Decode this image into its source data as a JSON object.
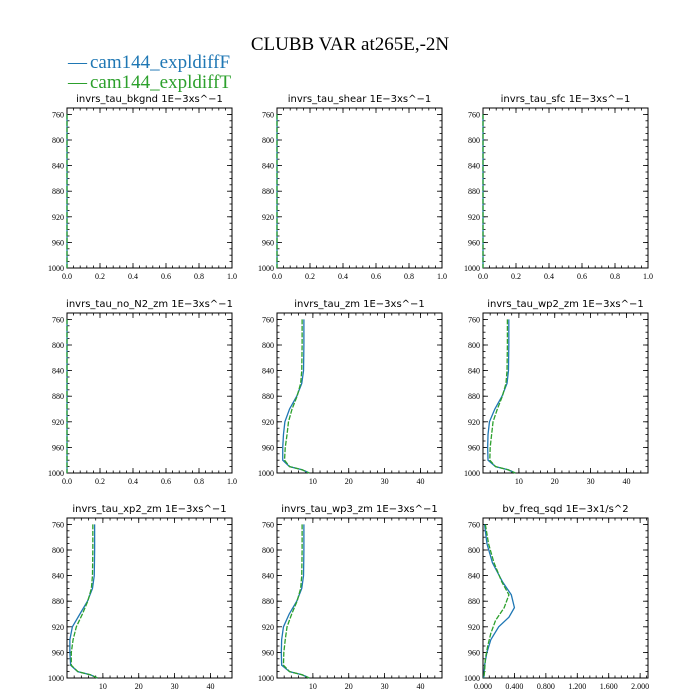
{
  "figure": {
    "title": "CLUBB VAR at265E,-2N",
    "legend": [
      {
        "name": "cam144_expldiffF",
        "color": "#1f77b4"
      },
      {
        "name": "cam144_expldiffT",
        "color": "#2ca02c"
      }
    ],
    "legend_marker": "—"
  },
  "chart_data": [
    {
      "type": "line",
      "title": "invrs_tau_bkgnd   1E−3xs^−1",
      "xlim": [
        0,
        1
      ],
      "ylim": [
        1000,
        750
      ],
      "yreverse": true,
      "xticks": [
        0.0,
        0.2,
        0.4,
        0.6,
        0.8,
        1.0
      ],
      "xtick_labels": [
        "0.0",
        "0.2",
        "0.4",
        "0.6",
        "0.8",
        "1.0"
      ],
      "yticks": [
        760,
        800,
        840,
        880,
        920,
        960,
        1000
      ],
      "series": [
        {
          "name": "cam144_expldiffF",
          "color": "#1f77b4",
          "points": [
            [
              0,
              760
            ],
            [
              0,
              1000
            ]
          ]
        },
        {
          "name": "cam144_expldiffT",
          "color": "#2ca02c",
          "points": [
            [
              0,
              760
            ],
            [
              0,
              1000
            ]
          ]
        }
      ]
    },
    {
      "type": "line",
      "title": "invrs_tau_shear   1E−3xs^−1",
      "xlim": [
        0,
        1
      ],
      "ylim": [
        1000,
        750
      ],
      "yreverse": true,
      "xticks": [
        0.0,
        0.2,
        0.4,
        0.6,
        0.8,
        1.0
      ],
      "xtick_labels": [
        "0.0",
        "0.2",
        "0.4",
        "0.6",
        "0.8",
        "1.0"
      ],
      "yticks": [
        760,
        800,
        840,
        880,
        920,
        960,
        1000
      ],
      "series": [
        {
          "name": "cam144_expldiffF",
          "color": "#1f77b4",
          "points": [
            [
              0,
              760
            ],
            [
              0,
              1000
            ]
          ]
        },
        {
          "name": "cam144_expldiffT",
          "color": "#2ca02c",
          "points": [
            [
              0,
              760
            ],
            [
              0,
              1000
            ]
          ]
        }
      ]
    },
    {
      "type": "line",
      "title": "invrs_tau_sfc   1E−3xs^−1",
      "xlim": [
        0,
        1
      ],
      "ylim": [
        1000,
        750
      ],
      "yreverse": true,
      "xticks": [
        0.0,
        0.2,
        0.4,
        0.6,
        0.8,
        1.0
      ],
      "xtick_labels": [
        "0.0",
        "0.2",
        "0.4",
        "0.6",
        "0.8",
        "1.0"
      ],
      "yticks": [
        760,
        800,
        840,
        880,
        920,
        960,
        1000
      ],
      "series": [
        {
          "name": "cam144_expldiffF",
          "color": "#1f77b4",
          "points": [
            [
              0,
              760
            ],
            [
              0,
              1000
            ]
          ]
        },
        {
          "name": "cam144_expldiffT",
          "color": "#2ca02c",
          "points": [
            [
              0,
              760
            ],
            [
              0,
              1000
            ]
          ]
        }
      ]
    },
    {
      "type": "line",
      "title": "invrs_tau_no_N2_zm   1E−3xs^−1",
      "xlim": [
        0,
        1
      ],
      "ylim": [
        1000,
        750
      ],
      "yreverse": true,
      "xticks": [
        0.0,
        0.2,
        0.4,
        0.6,
        0.8,
        1.0
      ],
      "xtick_labels": [
        "0.0",
        "0.2",
        "0.4",
        "0.6",
        "0.8",
        "1.0"
      ],
      "yticks": [
        760,
        800,
        840,
        880,
        920,
        960,
        1000
      ],
      "series": [
        {
          "name": "cam144_expldiffF",
          "color": "#1f77b4",
          "points": [
            [
              0,
              760
            ],
            [
              0,
              1000
            ]
          ]
        },
        {
          "name": "cam144_expldiffT",
          "color": "#2ca02c",
          "points": [
            [
              0,
              760
            ],
            [
              0,
              1000
            ]
          ]
        }
      ]
    },
    {
      "type": "line",
      "title": "invrs_tau_zm   1E−3xs^−1",
      "xlim": [
        0,
        46
      ],
      "ylim": [
        1000,
        750
      ],
      "yreverse": true,
      "xticks": [
        10,
        20,
        30,
        40
      ],
      "xtick_labels": [
        "10",
        "20",
        "30",
        "40"
      ],
      "yticks": [
        760,
        800,
        840,
        880,
        920,
        960,
        1000
      ],
      "series": [
        {
          "name": "cam144_expldiffF",
          "color": "#1f77b4",
          "points": [
            [
              7.5,
              760
            ],
            [
              7.5,
              800
            ],
            [
              7.4,
              840
            ],
            [
              6.9,
              860
            ],
            [
              5.5,
              880
            ],
            [
              3.5,
              900
            ],
            [
              2.2,
              920
            ],
            [
              1.8,
              940
            ],
            [
              1.6,
              960
            ],
            [
              1.6,
              980
            ],
            [
              3.5,
              990
            ],
            [
              7,
              995
            ],
            [
              9,
              1000
            ]
          ]
        },
        {
          "name": "cam144_expldiffT",
          "color": "#2ca02c",
          "points": [
            [
              7,
              760
            ],
            [
              7,
              800
            ],
            [
              6.9,
              840
            ],
            [
              6.6,
              860
            ],
            [
              5.6,
              880
            ],
            [
              4.2,
              900
            ],
            [
              3.2,
              920
            ],
            [
              2.8,
              940
            ],
            [
              2.3,
              960
            ],
            [
              2.1,
              980
            ],
            [
              3.5,
              990
            ],
            [
              7,
              995
            ],
            [
              9,
              1000
            ]
          ]
        }
      ]
    },
    {
      "type": "line",
      "title": "invrs_tau_wp2_zm   1E−3xs^−1",
      "xlim": [
        0,
        46
      ],
      "ylim": [
        1000,
        750
      ],
      "yreverse": true,
      "xticks": [
        10,
        20,
        30,
        40
      ],
      "xtick_labels": [
        "10",
        "20",
        "30",
        "40"
      ],
      "yticks": [
        760,
        800,
        840,
        880,
        920,
        960,
        1000
      ],
      "series": [
        {
          "name": "cam144_expldiffF",
          "color": "#1f77b4",
          "points": [
            [
              7.2,
              760
            ],
            [
              7.2,
              800
            ],
            [
              7.1,
              840
            ],
            [
              6.7,
              860
            ],
            [
              5.3,
              880
            ],
            [
              3.3,
              900
            ],
            [
              1.8,
              920
            ],
            [
              1.4,
              940
            ],
            [
              1.3,
              960
            ],
            [
              1.4,
              980
            ],
            [
              3.5,
              990
            ],
            [
              7,
              995
            ],
            [
              9,
              1000
            ]
          ]
        },
        {
          "name": "cam144_expldiffT",
          "color": "#2ca02c",
          "points": [
            [
              6.8,
              760
            ],
            [
              6.8,
              800
            ],
            [
              6.7,
              840
            ],
            [
              6.4,
              860
            ],
            [
              5.4,
              880
            ],
            [
              4.0,
              900
            ],
            [
              2.8,
              920
            ],
            [
              2.4,
              940
            ],
            [
              2.0,
              960
            ],
            [
              1.9,
              980
            ],
            [
              3.5,
              990
            ],
            [
              7,
              995
            ],
            [
              9,
              1000
            ]
          ]
        }
      ]
    },
    {
      "type": "line",
      "title": "invrs_tau_xp2_zm   1E−3xs^−1",
      "xlim": [
        0,
        46
      ],
      "ylim": [
        1000,
        750
      ],
      "yreverse": true,
      "xticks": [
        10,
        20,
        30,
        40
      ],
      "xtick_labels": [
        "10",
        "20",
        "30",
        "40"
      ],
      "yticks": [
        760,
        800,
        840,
        880,
        920,
        960,
        1000
      ],
      "series": [
        {
          "name": "cam144_expldiffF",
          "color": "#1f77b4",
          "points": [
            [
              7.7,
              760
            ],
            [
              7.7,
              800
            ],
            [
              7.6,
              840
            ],
            [
              7.1,
              860
            ],
            [
              5.7,
              880
            ],
            [
              3.6,
              900
            ],
            [
              1.5,
              920
            ],
            [
              0.8,
              940
            ],
            [
              0.8,
              960
            ],
            [
              1.0,
              980
            ],
            [
              3,
              990
            ],
            [
              6.5,
              995
            ],
            [
              8.5,
              1000
            ]
          ]
        },
        {
          "name": "cam144_expldiffT",
          "color": "#2ca02c",
          "points": [
            [
              7.2,
              760
            ],
            [
              7.2,
              800
            ],
            [
              7.1,
              840
            ],
            [
              6.8,
              860
            ],
            [
              5.8,
              880
            ],
            [
              4.3,
              900
            ],
            [
              2.6,
              920
            ],
            [
              1.7,
              940
            ],
            [
              1.2,
              960
            ],
            [
              1.2,
              980
            ],
            [
              3,
              990
            ],
            [
              6.5,
              995
            ],
            [
              8.5,
              1000
            ]
          ]
        }
      ]
    },
    {
      "type": "line",
      "title": "invrs_tau_wp3_zm   1E−3xs^−1",
      "xlim": [
        0,
        46
      ],
      "ylim": [
        1000,
        750
      ],
      "yreverse": true,
      "xticks": [
        10,
        20,
        30,
        40
      ],
      "xtick_labels": [
        "10",
        "20",
        "30",
        "40"
      ],
      "yticks": [
        760,
        800,
        840,
        880,
        920,
        960,
        1000
      ],
      "series": [
        {
          "name": "cam144_expldiffF",
          "color": "#1f77b4",
          "points": [
            [
              7.5,
              760
            ],
            [
              7.5,
              800
            ],
            [
              7.4,
              840
            ],
            [
              6.9,
              860
            ],
            [
              5.5,
              880
            ],
            [
              3.4,
              900
            ],
            [
              1.8,
              920
            ],
            [
              1.3,
              940
            ],
            [
              1.2,
              960
            ],
            [
              1.3,
              980
            ],
            [
              3.5,
              990
            ],
            [
              7,
              995
            ],
            [
              9,
              1000
            ]
          ]
        },
        {
          "name": "cam144_expldiffT",
          "color": "#2ca02c",
          "points": [
            [
              7,
              760
            ],
            [
              7,
              800
            ],
            [
              6.9,
              840
            ],
            [
              6.6,
              860
            ],
            [
              5.6,
              880
            ],
            [
              4.1,
              900
            ],
            [
              2.8,
              920
            ],
            [
              2.3,
              940
            ],
            [
              1.9,
              960
            ],
            [
              1.8,
              980
            ],
            [
              3.5,
              990
            ],
            [
              7,
              995
            ],
            [
              9,
              1000
            ]
          ]
        }
      ]
    },
    {
      "type": "line",
      "title": "bv_freq_sqd   1E−3x1/s^2",
      "xlim": [
        0,
        2.1
      ],
      "ylim": [
        1000,
        750
      ],
      "yreverse": true,
      "xticks": [
        0.0,
        0.4,
        0.8,
        1.2,
        1.6,
        2.0
      ],
      "xtick_labels": [
        "0.000",
        "0.400",
        "0.800",
        "1.200",
        "1.600",
        "2.000"
      ],
      "yticks": [
        760,
        800,
        840,
        880,
        920,
        960,
        1000
      ],
      "series": [
        {
          "name": "cam144_expldiffF",
          "color": "#1f77b4",
          "points": [
            [
              0.02,
              760
            ],
            [
              0.05,
              790
            ],
            [
              0.12,
              820
            ],
            [
              0.25,
              850
            ],
            [
              0.36,
              870
            ],
            [
              0.4,
              890
            ],
            [
              0.33,
              905
            ],
            [
              0.2,
              920
            ],
            [
              0.1,
              940
            ],
            [
              0.05,
              960
            ],
            [
              0.02,
              980
            ],
            [
              0.01,
              1000
            ]
          ]
        },
        {
          "name": "cam144_expldiffT",
          "color": "#2ca02c",
          "points": [
            [
              0.03,
              760
            ],
            [
              0.07,
              790
            ],
            [
              0.14,
              820
            ],
            [
              0.24,
              850
            ],
            [
              0.33,
              870
            ],
            [
              0.27,
              890
            ],
            [
              0.16,
              910
            ],
            [
              0.1,
              930
            ],
            [
              0.06,
              950
            ],
            [
              0.03,
              970
            ],
            [
              0.02,
              990
            ],
            [
              0.01,
              1000
            ]
          ]
        }
      ]
    }
  ]
}
